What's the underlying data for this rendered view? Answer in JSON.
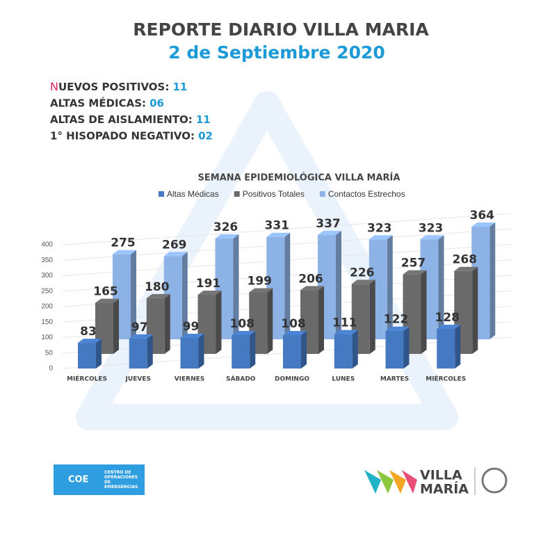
{
  "header": {
    "title": "REPORTE DIARIO VILLA MARIA",
    "date": "2 de Septiembre 2020"
  },
  "stats": [
    {
      "label": "NUEVOS POSITIVOS:",
      "value": "11"
    },
    {
      "label": "ALTAS MÉDICAS:",
      "value": "06"
    },
    {
      "label": "ALTAS DE AISLAMIENTO:",
      "value": "11"
    },
    {
      "label": "1° HISOPADO NEGATIVO:",
      "value": "02"
    }
  ],
  "chart_data": {
    "type": "bar",
    "title": "SEMANA EPIDEMIOLÓGICA VILLA MARÍA",
    "categories": [
      "MIÉRCOLES",
      "JUEVES",
      "VIERNES",
      "SÁBADO",
      "DOMINGO",
      "LUNES",
      "MARTES",
      "MIÉRCOLES"
    ],
    "series": [
      {
        "name": "Altas Médicas",
        "color": "#4579c2",
        "values": [
          83,
          97,
          99,
          108,
          108,
          111,
          122,
          128
        ]
      },
      {
        "name": "Positivos Totales",
        "color": "#6a6a6a",
        "values": [
          165,
          180,
          191,
          199,
          206,
          226,
          257,
          268
        ]
      },
      {
        "name": "Contactos Estrechos",
        "color": "#8db3e6",
        "values": [
          275,
          269,
          326,
          331,
          337,
          323,
          323,
          364
        ]
      }
    ],
    "ylim": [
      0,
      400
    ],
    "yticks": [
      0,
      50,
      100,
      150,
      200,
      250,
      300,
      350,
      400
    ],
    "grid": true,
    "legend": "top"
  },
  "footer": {
    "coe": "COE",
    "coe_text": "CENTRO DE OPERACIONES DE EMERGENCIAS",
    "brand_1": "VILLA",
    "brand_2": "MARÍA"
  }
}
